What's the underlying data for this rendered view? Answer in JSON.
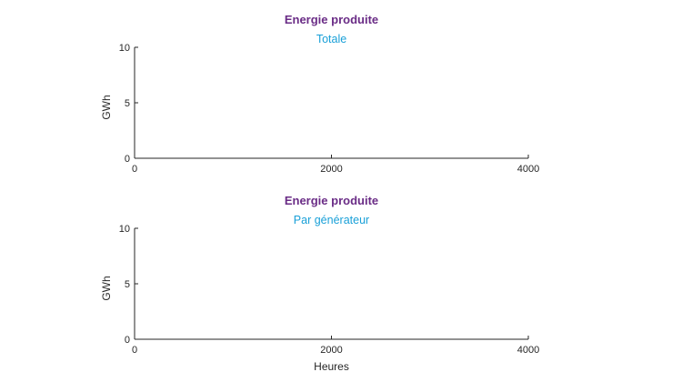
{
  "colors": {
    "title": "#6a2c86",
    "subtitle": "#1aa0d8",
    "axis": "#262626",
    "background": "#ffffff"
  },
  "chart_data": [
    {
      "type": "line",
      "title": "Energie produite",
      "subtitle": "Totale",
      "xlabel": "",
      "ylabel": "GWh",
      "xlim": [
        0,
        4000
      ],
      "ylim": [
        0,
        10
      ],
      "xticks": [
        0,
        2000,
        4000
      ],
      "yticks": [
        0,
        5,
        10
      ],
      "xtick_labels": [
        "0",
        "2000",
        "4000"
      ],
      "ytick_labels": [
        "0",
        "5",
        "10"
      ],
      "grid": false,
      "series": []
    },
    {
      "type": "line",
      "title": "Energie produite",
      "subtitle": "Par générateur",
      "xlabel": "Heures",
      "ylabel": "GWh",
      "xlim": [
        0,
        4000
      ],
      "ylim": [
        0,
        10
      ],
      "xticks": [
        0,
        2000,
        4000
      ],
      "yticks": [
        0,
        5,
        10
      ],
      "xtick_labels": [
        "0",
        "2000",
        "4000"
      ],
      "ytick_labels": [
        "0",
        "5",
        "10"
      ],
      "grid": false,
      "series": []
    }
  ]
}
